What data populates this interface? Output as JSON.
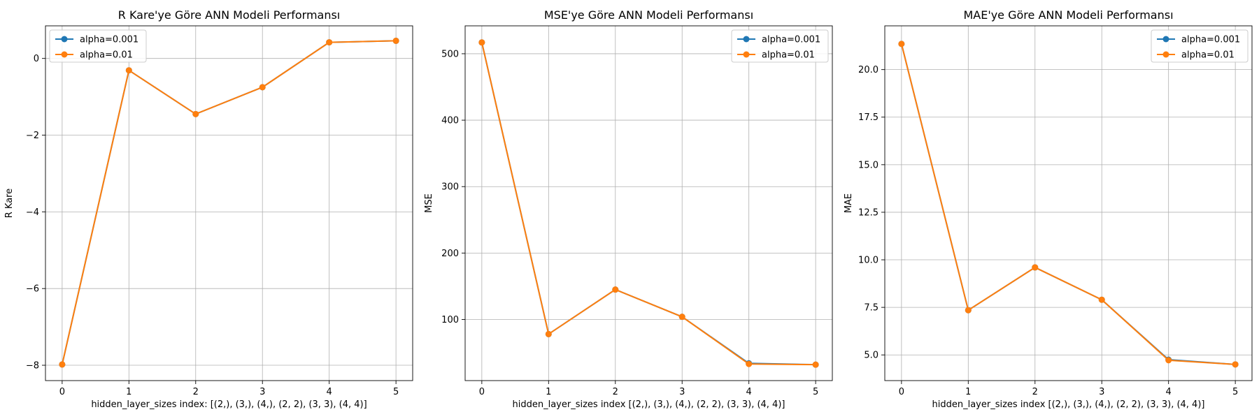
{
  "chart_data": [
    {
      "type": "line",
      "title": "R Kare'ye Göre ANN Modeli Performansı",
      "xlabel": "hidden_layer_sizes index: [(2,), (3,), (4,), (2, 2), (3, 3), (4, 4)]",
      "ylabel": "R Kare",
      "x": [
        0,
        1,
        2,
        3,
        4,
        5
      ],
      "xticks": [
        "0",
        "1",
        "2",
        "3",
        "4",
        "5"
      ],
      "yticks": [
        0,
        -2,
        -4,
        -6,
        -8
      ],
      "ytick_labels": [
        "0",
        "−2",
        "−4",
        "−6",
        "−8"
      ],
      "xlim": [
        -0.25,
        5.25
      ],
      "ylim": [
        -8.4,
        0.85
      ],
      "grid": true,
      "legend": "top-left",
      "series": [
        {
          "name": "alpha=0.001",
          "color": "#1f77b4",
          "values": [
            -7.98,
            -0.31,
            -1.45,
            -0.75,
            0.42,
            0.46
          ]
        },
        {
          "name": "alpha=0.01",
          "color": "#ff7f0e",
          "values": [
            -7.98,
            -0.31,
            -1.45,
            -0.75,
            0.42,
            0.46
          ]
        }
      ]
    },
    {
      "type": "line",
      "title": "MSE'ye Göre ANN Modeli Performansı",
      "xlabel": "hidden_layer_sizes index [(2,), (3,), (4,), (2, 2), (3, 3), (4, 4)]",
      "ylabel": "MSE",
      "x": [
        0,
        1,
        2,
        3,
        4,
        5
      ],
      "xticks": [
        "0",
        "1",
        "2",
        "3",
        "4",
        "5"
      ],
      "yticks": [
        100,
        200,
        300,
        400,
        500
      ],
      "ytick_labels": [
        "100",
        "200",
        "300",
        "400",
        "500"
      ],
      "xlim": [
        -0.25,
        5.25
      ],
      "ylim": [
        8,
        542
      ],
      "grid": true,
      "legend": "top-right",
      "series": [
        {
          "name": "alpha=0.001",
          "color": "#1f77b4",
          "values": [
            517,
            78,
            145,
            104,
            34,
            32
          ]
        },
        {
          "name": "alpha=0.01",
          "color": "#ff7f0e",
          "values": [
            517,
            78,
            145,
            104,
            33,
            32
          ]
        }
      ]
    },
    {
      "type": "line",
      "title": "MAE'ye Göre ANN Modeli Performansı",
      "xlabel": "hidden_layer_sizes index [(2,), (3,), (4,), (2, 2), (3, 3), (4, 4)]",
      "ylabel": "MAE",
      "x": [
        0,
        1,
        2,
        3,
        4,
        5
      ],
      "xticks": [
        "0",
        "1",
        "2",
        "3",
        "4",
        "5"
      ],
      "yticks": [
        5.0,
        7.5,
        10.0,
        12.5,
        15.0,
        17.5,
        20.0
      ],
      "ytick_labels": [
        "5.0",
        "7.5",
        "10.0",
        "12.5",
        "15.0",
        "17.5",
        "20.0"
      ],
      "xlim": [
        -0.25,
        5.25
      ],
      "ylim": [
        3.65,
        22.3
      ],
      "grid": true,
      "legend": "top-right",
      "series": [
        {
          "name": "alpha=0.001",
          "color": "#1f77b4",
          "values": [
            21.35,
            7.35,
            9.6,
            7.9,
            4.75,
            4.5
          ]
        },
        {
          "name": "alpha=0.01",
          "color": "#ff7f0e",
          "values": [
            21.35,
            7.35,
            9.6,
            7.9,
            4.72,
            4.5
          ]
        }
      ]
    }
  ]
}
